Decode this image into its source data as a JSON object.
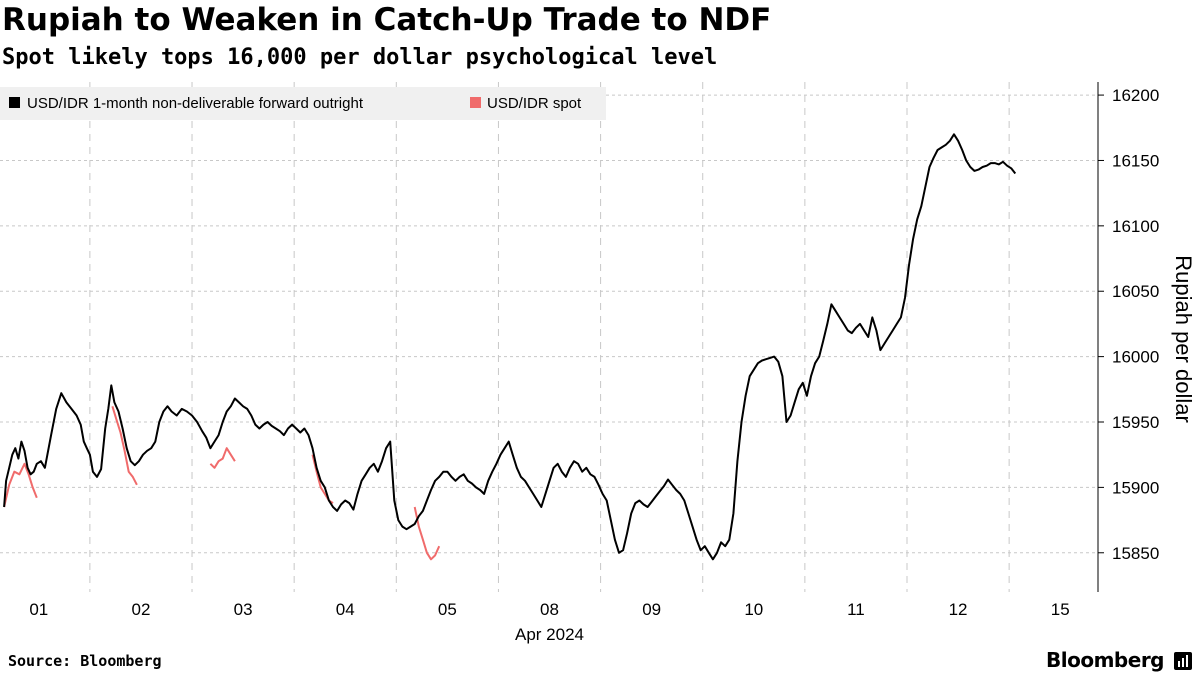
{
  "title": "Rupiah to Weaken in Catch-Up Trade to NDF",
  "subtitle": "Spot likely tops 16,000 per dollar psychological level",
  "source": "Source: Bloomberg",
  "brand": "Bloomberg",
  "chart_data": {
    "type": "line",
    "title": "Rupiah to Weaken in Catch-Up Trade to NDF",
    "subtitle": "Spot likely tops 16,000 per dollar psychological level",
    "xlabel": "Apr 2024",
    "ylabel": "Rupiah per dollar",
    "ylim": [
      15820,
      16210
    ],
    "yticks": [
      15850,
      15900,
      15950,
      16000,
      16050,
      16100,
      16150,
      16200
    ],
    "xticks": [
      "01",
      "02",
      "03",
      "04",
      "05",
      "08",
      "09",
      "10",
      "11",
      "12",
      "15"
    ],
    "x_unit": "trading-day index (0 = Apr 01 label, 1 day per step)",
    "xlim": [
      -0.38,
      10.37
    ],
    "grid": true,
    "legend_position": "top-left",
    "colors": {
      "ndf": "#000000",
      "spot": "#f06b6b",
      "grid": "#c8c8c8",
      "legend_bg": "#f0f0f0"
    },
    "series": [
      {
        "name": "USD/IDR 1-month non-deliverable forward outright",
        "color": "#000000",
        "points": [
          [
            -0.34,
            15885
          ],
          [
            -0.32,
            15905
          ],
          [
            -0.29,
            15915
          ],
          [
            -0.26,
            15925
          ],
          [
            -0.23,
            15930
          ],
          [
            -0.2,
            15922
          ],
          [
            -0.17,
            15935
          ],
          [
            -0.14,
            15928
          ],
          [
            -0.11,
            15915
          ],
          [
            -0.08,
            15910
          ],
          [
            -0.05,
            15912
          ],
          [
            -0.02,
            15918
          ],
          [
            0.02,
            15920
          ],
          [
            0.06,
            15915
          ],
          [
            0.12,
            15940
          ],
          [
            0.17,
            15960
          ],
          [
            0.22,
            15972
          ],
          [
            0.27,
            15965
          ],
          [
            0.32,
            15960
          ],
          [
            0.37,
            15955
          ],
          [
            0.41,
            15948
          ],
          [
            0.44,
            15935
          ],
          [
            0.47,
            15930
          ],
          [
            0.5,
            15925
          ],
          [
            0.53,
            15912
          ],
          [
            0.57,
            15908
          ],
          [
            0.61,
            15914
          ],
          [
            0.65,
            15945
          ],
          [
            0.68,
            15960
          ],
          [
            0.71,
            15978
          ],
          [
            0.74,
            15965
          ],
          [
            0.78,
            15958
          ],
          [
            0.82,
            15945
          ],
          [
            0.86,
            15930
          ],
          [
            0.9,
            15920
          ],
          [
            0.94,
            15917
          ],
          [
            0.98,
            15920
          ],
          [
            1.02,
            15925
          ],
          [
            1.06,
            15928
          ],
          [
            1.1,
            15930
          ],
          [
            1.14,
            15935
          ],
          [
            1.18,
            15950
          ],
          [
            1.22,
            15958
          ],
          [
            1.26,
            15962
          ],
          [
            1.3,
            15958
          ],
          [
            1.35,
            15955
          ],
          [
            1.4,
            15960
          ],
          [
            1.45,
            15958
          ],
          [
            1.5,
            15955
          ],
          [
            1.55,
            15950
          ],
          [
            1.6,
            15943
          ],
          [
            1.64,
            15938
          ],
          [
            1.68,
            15930
          ],
          [
            1.72,
            15935
          ],
          [
            1.76,
            15940
          ],
          [
            1.8,
            15950
          ],
          [
            1.84,
            15958
          ],
          [
            1.88,
            15962
          ],
          [
            1.92,
            15968
          ],
          [
            1.96,
            15965
          ],
          [
            2.0,
            15962
          ],
          [
            2.04,
            15960
          ],
          [
            2.08,
            15955
          ],
          [
            2.12,
            15948
          ],
          [
            2.16,
            15945
          ],
          [
            2.2,
            15948
          ],
          [
            2.24,
            15950
          ],
          [
            2.28,
            15947
          ],
          [
            2.32,
            15945
          ],
          [
            2.36,
            15943
          ],
          [
            2.4,
            15940
          ],
          [
            2.44,
            15945
          ],
          [
            2.48,
            15948
          ],
          [
            2.52,
            15945
          ],
          [
            2.56,
            15942
          ],
          [
            2.6,
            15945
          ],
          [
            2.64,
            15940
          ],
          [
            2.68,
            15930
          ],
          [
            2.72,
            15915
          ],
          [
            2.76,
            15905
          ],
          [
            2.8,
            15900
          ],
          [
            2.84,
            15890
          ],
          [
            2.88,
            15885
          ],
          [
            2.92,
            15882
          ],
          [
            2.96,
            15887
          ],
          [
            3.0,
            15890
          ],
          [
            3.04,
            15888
          ],
          [
            3.08,
            15883
          ],
          [
            3.12,
            15895
          ],
          [
            3.16,
            15905
          ],
          [
            3.2,
            15910
          ],
          [
            3.24,
            15915
          ],
          [
            3.28,
            15918
          ],
          [
            3.32,
            15912
          ],
          [
            3.36,
            15920
          ],
          [
            3.4,
            15930
          ],
          [
            3.44,
            15935
          ],
          [
            3.48,
            15890
          ],
          [
            3.52,
            15875
          ],
          [
            3.56,
            15870
          ],
          [
            3.6,
            15868
          ],
          [
            3.64,
            15870
          ],
          [
            3.68,
            15872
          ],
          [
            3.72,
            15878
          ],
          [
            3.76,
            15882
          ],
          [
            3.8,
            15890
          ],
          [
            3.84,
            15898
          ],
          [
            3.88,
            15905
          ],
          [
            3.92,
            15908
          ],
          [
            3.96,
            15912
          ],
          [
            4.0,
            15912
          ],
          [
            4.04,
            15908
          ],
          [
            4.08,
            15905
          ],
          [
            4.12,
            15908
          ],
          [
            4.16,
            15910
          ],
          [
            4.2,
            15905
          ],
          [
            4.24,
            15903
          ],
          [
            4.28,
            15900
          ],
          [
            4.32,
            15898
          ],
          [
            4.36,
            15895
          ],
          [
            4.4,
            15905
          ],
          [
            4.44,
            15912
          ],
          [
            4.48,
            15918
          ],
          [
            4.52,
            15925
          ],
          [
            4.56,
            15930
          ],
          [
            4.6,
            15935
          ],
          [
            4.64,
            15925
          ],
          [
            4.68,
            15915
          ],
          [
            4.72,
            15908
          ],
          [
            4.76,
            15905
          ],
          [
            4.8,
            15900
          ],
          [
            4.84,
            15895
          ],
          [
            4.88,
            15890
          ],
          [
            4.92,
            15885
          ],
          [
            4.96,
            15895
          ],
          [
            5.0,
            15905
          ],
          [
            5.04,
            15915
          ],
          [
            5.08,
            15918
          ],
          [
            5.12,
            15912
          ],
          [
            5.16,
            15908
          ],
          [
            5.2,
            15915
          ],
          [
            5.24,
            15920
          ],
          [
            5.28,
            15918
          ],
          [
            5.32,
            15912
          ],
          [
            5.36,
            15915
          ],
          [
            5.4,
            15910
          ],
          [
            5.44,
            15908
          ],
          [
            5.48,
            15902
          ],
          [
            5.52,
            15895
          ],
          [
            5.56,
            15890
          ],
          [
            5.6,
            15875
          ],
          [
            5.64,
            15860
          ],
          [
            5.68,
            15850
          ],
          [
            5.72,
            15852
          ],
          [
            5.76,
            15865
          ],
          [
            5.8,
            15880
          ],
          [
            5.84,
            15888
          ],
          [
            5.88,
            15890
          ],
          [
            5.92,
            15887
          ],
          [
            5.96,
            15885
          ],
          [
            6.0,
            15889
          ],
          [
            6.04,
            15893
          ],
          [
            6.08,
            15897
          ],
          [
            6.12,
            15901
          ],
          [
            6.16,
            15906
          ],
          [
            6.2,
            15902
          ],
          [
            6.24,
            15898
          ],
          [
            6.28,
            15895
          ],
          [
            6.32,
            15890
          ],
          [
            6.36,
            15880
          ],
          [
            6.4,
            15870
          ],
          [
            6.44,
            15860
          ],
          [
            6.48,
            15852
          ],
          [
            6.52,
            15855
          ],
          [
            6.56,
            15850
          ],
          [
            6.6,
            15845
          ],
          [
            6.64,
            15850
          ],
          [
            6.68,
            15858
          ],
          [
            6.72,
            15855
          ],
          [
            6.76,
            15860
          ],
          [
            6.8,
            15880
          ],
          [
            6.84,
            15920
          ],
          [
            6.88,
            15950
          ],
          [
            6.92,
            15970
          ],
          [
            6.96,
            15985
          ],
          [
            7.0,
            15990
          ],
          [
            7.04,
            15995
          ],
          [
            7.08,
            15997
          ],
          [
            7.12,
            15998
          ],
          [
            7.16,
            15999
          ],
          [
            7.2,
            16000
          ],
          [
            7.24,
            15996
          ],
          [
            7.28,
            15985
          ],
          [
            7.32,
            15950
          ],
          [
            7.36,
            15955
          ],
          [
            7.4,
            15965
          ],
          [
            7.44,
            15975
          ],
          [
            7.48,
            15980
          ],
          [
            7.52,
            15970
          ],
          [
            7.56,
            15985
          ],
          [
            7.6,
            15995
          ],
          [
            7.64,
            16000
          ],
          [
            7.68,
            16012
          ],
          [
            7.72,
            16025
          ],
          [
            7.76,
            16040
          ],
          [
            7.8,
            16035
          ],
          [
            7.84,
            16030
          ],
          [
            7.88,
            16025
          ],
          [
            7.92,
            16020
          ],
          [
            7.96,
            16018
          ],
          [
            8.0,
            16022
          ],
          [
            8.04,
            16025
          ],
          [
            8.08,
            16020
          ],
          [
            8.12,
            16015
          ],
          [
            8.16,
            16030
          ],
          [
            8.2,
            16020
          ],
          [
            8.24,
            16005
          ],
          [
            8.28,
            16010
          ],
          [
            8.32,
            16015
          ],
          [
            8.36,
            16020
          ],
          [
            8.4,
            16025
          ],
          [
            8.44,
            16030
          ],
          [
            8.48,
            16045
          ],
          [
            8.52,
            16070
          ],
          [
            8.56,
            16090
          ],
          [
            8.6,
            16105
          ],
          [
            8.64,
            16115
          ],
          [
            8.68,
            16130
          ],
          [
            8.72,
            16145
          ],
          [
            8.76,
            16152
          ],
          [
            8.8,
            16158
          ],
          [
            8.84,
            16160
          ],
          [
            8.88,
            16162
          ],
          [
            8.92,
            16165
          ],
          [
            8.96,
            16170
          ],
          [
            9.0,
            16165
          ],
          [
            9.04,
            16158
          ],
          [
            9.08,
            16150
          ],
          [
            9.12,
            16145
          ],
          [
            9.16,
            16142
          ],
          [
            9.2,
            16143
          ],
          [
            9.24,
            16145
          ],
          [
            9.28,
            16146
          ],
          [
            9.32,
            16148
          ],
          [
            9.36,
            16148
          ],
          [
            9.4,
            16147
          ],
          [
            9.44,
            16149
          ],
          [
            9.48,
            16146
          ],
          [
            9.52,
            16144
          ],
          [
            9.56,
            16140
          ]
        ]
      },
      {
        "name": "USD/IDR spot",
        "color": "#f06b6b",
        "segments": [
          [
            [
              -0.34,
              15885
            ],
            [
              -0.29,
              15902
            ],
            [
              -0.24,
              15912
            ],
            [
              -0.19,
              15910
            ],
            [
              -0.14,
              15918
            ],
            [
              -0.1,
              15910
            ],
            [
              -0.06,
              15900
            ],
            [
              -0.02,
              15892
            ]
          ],
          [
            [
              0.72,
              15962
            ],
            [
              0.76,
              15952
            ],
            [
              0.8,
              15942
            ],
            [
              0.84,
              15928
            ],
            [
              0.88,
              15912
            ],
            [
              0.92,
              15908
            ],
            [
              0.96,
              15902
            ]
          ],
          [
            [
              1.68,
              15918
            ],
            [
              1.72,
              15915
            ],
            [
              1.76,
              15920
            ],
            [
              1.8,
              15922
            ],
            [
              1.84,
              15930
            ],
            [
              1.88,
              15925
            ],
            [
              1.92,
              15920
            ]
          ],
          [
            [
              2.68,
              15925
            ],
            [
              2.72,
              15912
            ],
            [
              2.76,
              15900
            ],
            [
              2.8,
              15895
            ],
            [
              2.84,
              15890
            ],
            [
              2.88,
              15888
            ]
          ],
          [
            [
              3.68,
              15885
            ],
            [
              3.72,
              15870
            ],
            [
              3.76,
              15860
            ],
            [
              3.8,
              15850
            ],
            [
              3.84,
              15845
            ],
            [
              3.88,
              15848
            ],
            [
              3.92,
              15855
            ]
          ]
        ]
      }
    ]
  }
}
